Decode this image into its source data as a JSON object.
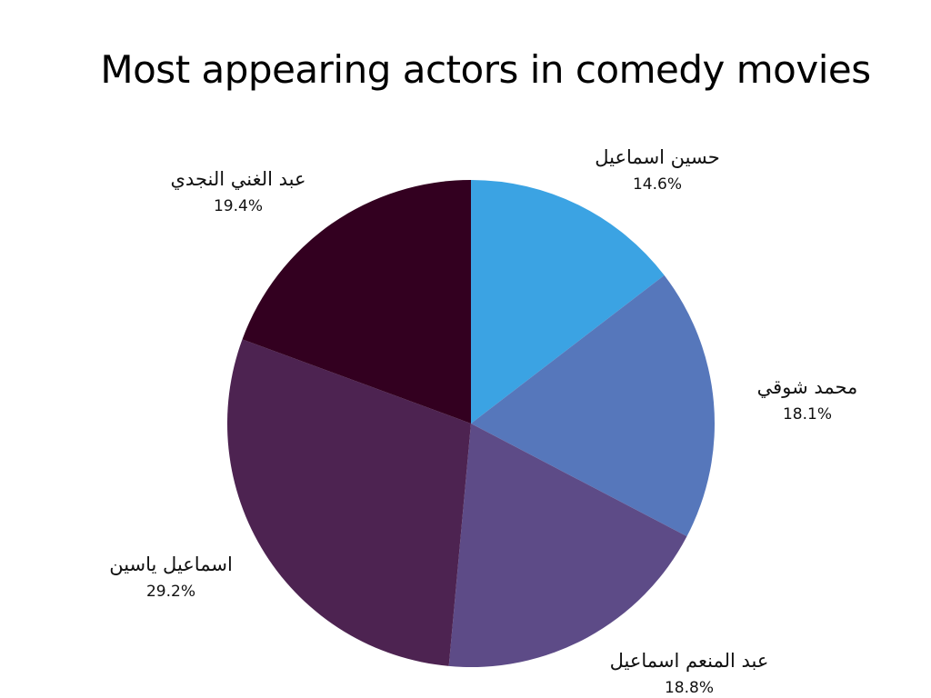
{
  "chart_data": {
    "type": "pie",
    "title": "Most appearing actors in comedy movies",
    "slices": [
      {
        "label": "حسين اسماعيل",
        "value": 14.6,
        "value_label": "14.6%",
        "color": "#3ba3e3"
      },
      {
        "label": "محمد شوقي",
        "value": 18.1,
        "value_label": "18.1%",
        "color": "#5677bb"
      },
      {
        "label": "عبد المنعم اسماعيل",
        "value": 18.8,
        "value_label": "18.8%",
        "color": "#5d4b87"
      },
      {
        "label": "اسماعيل ياسين",
        "value": 29.2,
        "value_label": "29.2%",
        "color": "#4d2351"
      },
      {
        "label": "عبد الغني النجدي",
        "value": 19.4,
        "value_label": "19.4%",
        "color": "#330020"
      }
    ]
  }
}
